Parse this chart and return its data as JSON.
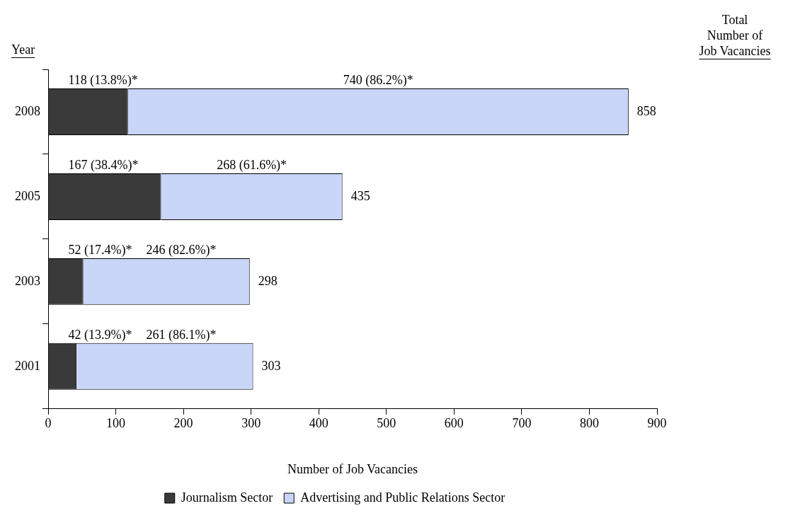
{
  "chart_data": {
    "type": "bar",
    "orientation": "horizontal",
    "stacked": true,
    "xlabel": "Number of Job Vacancies",
    "ylabel": "Year",
    "categories": [
      "2008",
      "2005",
      "2003",
      "2001"
    ],
    "series": [
      {
        "name": "Journalism Sector",
        "color": "#3a3a3a",
        "values": [
          118,
          167,
          52,
          42
        ],
        "value_labels": [
          "118 (13.8%)*",
          "167 (38.4%)*",
          "52 (17.4%)*",
          "42 (13.9%)*"
        ]
      },
      {
        "name": "Advertising and Public Relations Sector",
        "color": "#c9d6f7",
        "values": [
          740,
          268,
          246,
          261
        ],
        "value_labels": [
          "740 (86.2%)*",
          "268 (61.6%)*",
          "246 (82.6%)*",
          "261 (86.1%)*"
        ]
      }
    ],
    "totals": [
      "858",
      "435",
      "298",
      "303"
    ],
    "annotations": [
      "Total Number of Job Vacancies"
    ],
    "xlim": [
      0,
      900
    ],
    "xticks": [
      0,
      100,
      200,
      300,
      400,
      500,
      600,
      700,
      800,
      900
    ],
    "grid": false,
    "legend": "bottom"
  }
}
